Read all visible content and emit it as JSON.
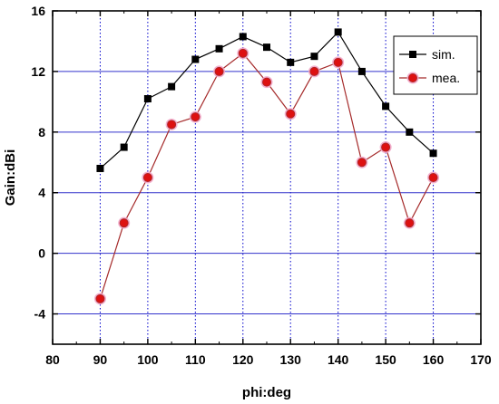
{
  "chart_data": {
    "type": "line",
    "xlabel": "phi:deg",
    "ylabel": "Gain:dBi",
    "xlim": [
      80,
      170
    ],
    "ylim": [
      -6,
      16
    ],
    "xticks": [
      80,
      90,
      100,
      110,
      120,
      130,
      140,
      150,
      160,
      170
    ],
    "yticks": [
      -4,
      0,
      4,
      8,
      12,
      16
    ],
    "vertical_grid": [
      90,
      100,
      110,
      120,
      130,
      140,
      150,
      160
    ],
    "horizontal_grid": [
      -4,
      0,
      4,
      8,
      12
    ],
    "legend_position": "top-right",
    "series": [
      {
        "name": "sim.",
        "marker": "square",
        "color": "#000000",
        "x": [
          90,
          95,
          100,
          105,
          110,
          115,
          120,
          125,
          130,
          135,
          140,
          145,
          150,
          155,
          160
        ],
        "values": [
          5.6,
          7.0,
          10.2,
          11.0,
          12.8,
          13.5,
          14.3,
          13.6,
          12.6,
          13.0,
          14.6,
          12.0,
          9.7,
          8.0,
          6.6
        ]
      },
      {
        "name": "mea.",
        "marker": "circle",
        "color": "#a52a2a",
        "fill": "#dd1111",
        "x": [
          90,
          95,
          100,
          105,
          110,
          115,
          120,
          125,
          130,
          135,
          140,
          145,
          150,
          155,
          160
        ],
        "values": [
          -3.0,
          2.0,
          5.0,
          8.5,
          9.0,
          12.0,
          13.2,
          11.3,
          9.2,
          12.0,
          12.6,
          6.0,
          7.0,
          2.0,
          5.0
        ]
      }
    ]
  }
}
